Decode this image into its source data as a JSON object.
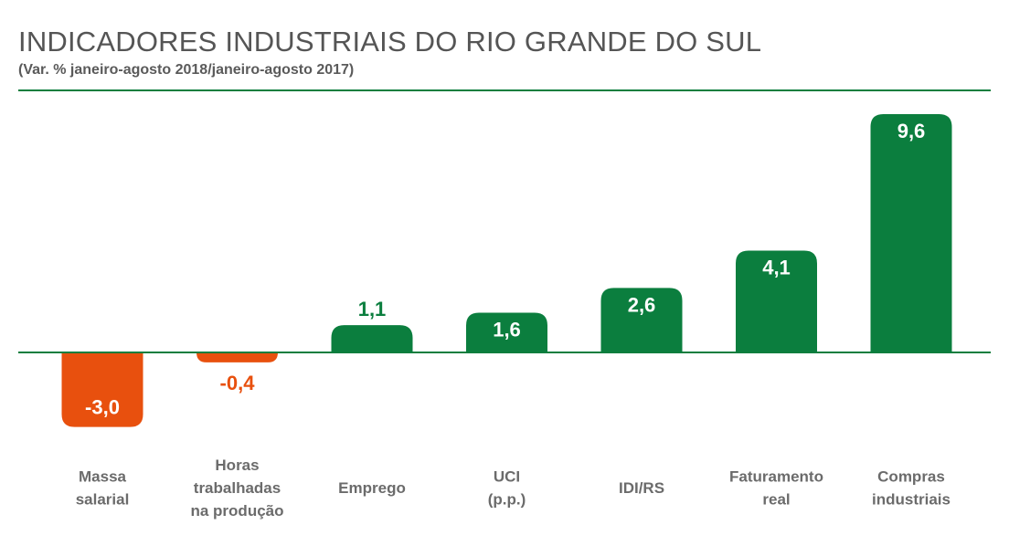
{
  "chart_data": {
    "type": "bar",
    "title": "INDICADORES INDUSTRIAIS DO RIO GRANDE DO SUL",
    "subtitle": "(Var. % janeiro-agosto 2018/janeiro-agosto 2017)",
    "categories": [
      [
        "Massa",
        "salarial"
      ],
      [
        "Horas",
        "trabalhadas",
        "na produção"
      ],
      [
        "Emprego"
      ],
      [
        "UCI",
        "(p.p.)"
      ],
      [
        "IDI/RS"
      ],
      [
        "Faturamento",
        "real"
      ],
      [
        "Compras",
        "industriais"
      ]
    ],
    "values": [
      -3.0,
      -0.4,
      1.1,
      1.6,
      2.6,
      4.1,
      9.6
    ],
    "value_labels": [
      "-3,0",
      "-0,4",
      "1,1",
      "1,6",
      "2,6",
      "4,1",
      "9,6"
    ],
    "ylim": [
      -3.0,
      9.6
    ],
    "xlabel": "",
    "ylabel": "",
    "grid": false,
    "colors": {
      "positive": "#0b7e3e",
      "negative": "#e8500e",
      "label_inside": "#ffffff",
      "axis": "#0b7e3e"
    }
  }
}
